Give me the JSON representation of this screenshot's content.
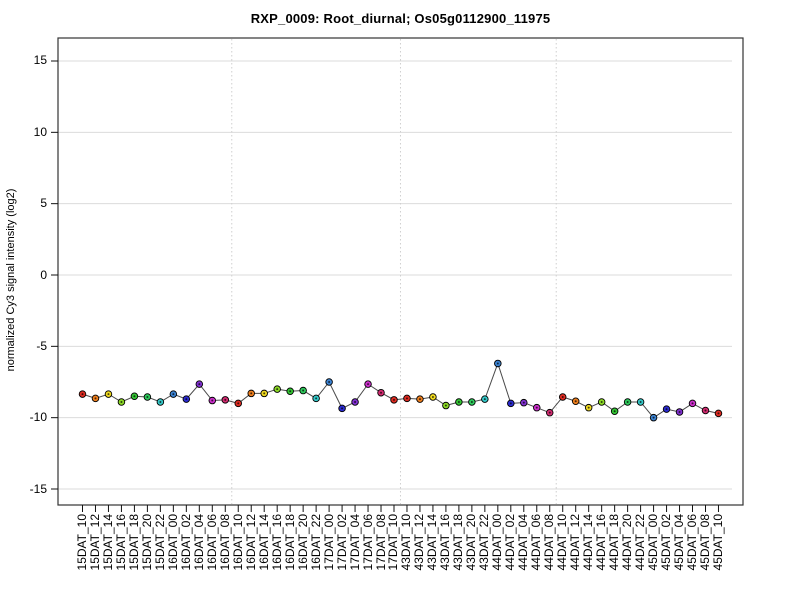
{
  "title": "RXP_0009: Root_diurnal; Os05g0112900_11975",
  "chart_data": {
    "type": "line",
    "title": "RXP_0009: Root_diurnal; Os05g0112900_11975",
    "xlabel": "",
    "ylabel": "normalized Cy3 signal intensity (log2)",
    "ylim": [
      -16,
      16.5
    ],
    "yticks": [
      15,
      10,
      5,
      0,
      -5,
      -10,
      -15
    ],
    "grid": "horizontal solid gray at each y tick; vertical dotted separators at 24h boundaries",
    "legend": "none",
    "categories": [
      "15DAT_10",
      "15DAT_12",
      "15DAT_14",
      "15DAT_16",
      "15DAT_18",
      "15DAT_20",
      "15DAT_22",
      "16DAT_00",
      "16DAT_02",
      "16DAT_04",
      "16DAT_06",
      "16DAT_08",
      "16DAT_10",
      "16DAT_12",
      "16DAT_14",
      "16DAT_16",
      "16DAT_18",
      "16DAT_20",
      "16DAT_22",
      "17DAT_00",
      "17DAT_02",
      "17DAT_04",
      "17DAT_06",
      "17DAT_08",
      "17DAT_10",
      "43DAT_10",
      "43DAT_12",
      "43DAT_14",
      "43DAT_16",
      "43DAT_18",
      "43DAT_20",
      "43DAT_22",
      "44DAT_00",
      "44DAT_02",
      "44DAT_04",
      "44DAT_06",
      "44DAT_08",
      "44DAT_10",
      "44DAT_12",
      "44DAT_14",
      "44DAT_16",
      "44DAT_18",
      "44DAT_20",
      "44DAT_22",
      "45DAT_00",
      "45DAT_02",
      "45DAT_04",
      "45DAT_06",
      "45DAT_08",
      "45DAT_10"
    ],
    "values": [
      -8.35,
      -8.65,
      -8.35,
      -8.9,
      -8.5,
      -8.55,
      -8.9,
      -8.35,
      -8.7,
      -7.65,
      -8.8,
      -8.75,
      -9.0,
      -8.3,
      -8.3,
      -8.0,
      -8.15,
      -8.1,
      -8.65,
      -7.5,
      -9.35,
      -8.9,
      -7.65,
      -8.25,
      -8.75,
      -8.65,
      -8.7,
      -8.55,
      -9.15,
      -8.9,
      -8.9,
      -8.7,
      -6.2,
      -9.0,
      -8.95,
      -9.3,
      -9.65,
      -8.55,
      -8.85,
      -9.3,
      -8.9,
      -9.55,
      -8.9,
      -8.9,
      -10.0,
      -9.4,
      -9.6,
      -9.0,
      -9.5,
      -9.7
    ],
    "separators_after_index": [
      11,
      24,
      36
    ],
    "point_color_by_hour": {
      "10": "#DE2B21",
      "12": "#EE7F1E",
      "14": "#EFD920",
      "16": "#8CD926",
      "18": "#33C433",
      "20": "#2EC95B",
      "22": "#34C9C9",
      "00": "#3B82D1",
      "02": "#2B2BD1",
      "04": "#8030D0",
      "06": "#CC30CC",
      "08": "#D12B70"
    },
    "line_color": "#4a4a4a",
    "marker": "circle, black outline, dark center dot, fill colored by time of day",
    "gridline_color": "#dbdbdb",
    "separator_color": "#cfcfcf",
    "axis_color": "#333333"
  }
}
